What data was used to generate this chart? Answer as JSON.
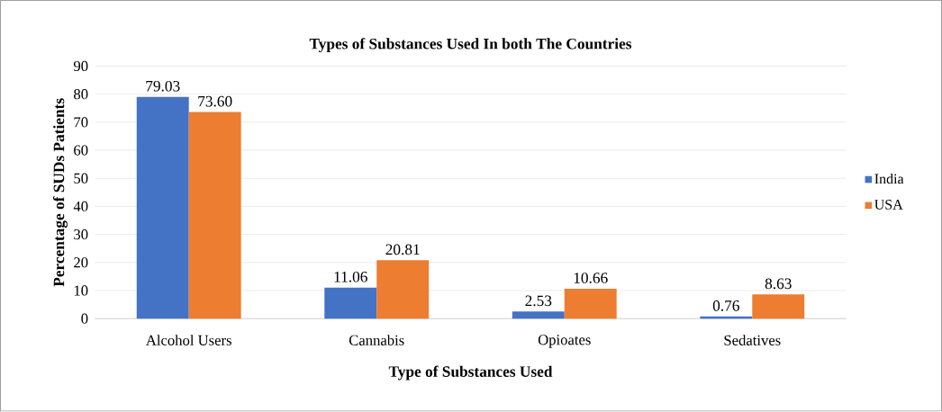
{
  "chart_data": {
    "type": "bar",
    "title": "Types of Substances Used In both The Countries",
    "xlabel": "Type of Substances Used",
    "ylabel": "Percentage of SUDs Patients",
    "categories": [
      "Alcohol Users",
      "Cannabis",
      "Opioates",
      "Sedatives"
    ],
    "series": [
      {
        "name": "India",
        "color": "#4472c4",
        "values": [
          79.03,
          11.06,
          2.53,
          0.76
        ],
        "value_labels": [
          "79.03",
          "11.06",
          "2.53",
          "0.76"
        ]
      },
      {
        "name": "USA",
        "color": "#ed7d31",
        "values": [
          73.6,
          20.81,
          10.66,
          8.63
        ],
        "value_labels": [
          "73.60",
          "20.81",
          "10.66",
          "8.63"
        ]
      }
    ],
    "ylim": [
      0,
      90
    ],
    "yticks": [
      0,
      10,
      20,
      30,
      40,
      50,
      60,
      70,
      80,
      90
    ],
    "grid": "y",
    "legend": "right"
  }
}
